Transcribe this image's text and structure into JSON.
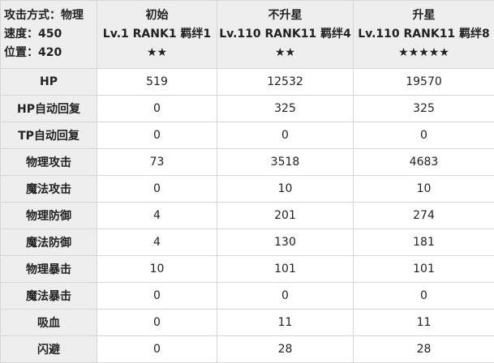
{
  "meta": {
    "attack_type": "攻击方式：物理",
    "speed": "速度：450",
    "position": "位置：420"
  },
  "columns": [
    {
      "title": "初始",
      "level": "Lv.1 RANK1 羁绊1",
      "stars": "★★"
    },
    {
      "title": "不升星",
      "level": "Lv.110 RANK11 羁绊4",
      "stars": "★★"
    },
    {
      "title": "升星",
      "level": "Lv.110 RANK11 羁绊8",
      "stars": "★★★★★"
    }
  ],
  "rows": [
    {
      "label": "HP",
      "values": [
        "519",
        "12532",
        "19570"
      ]
    },
    {
      "label": "HP自动回复",
      "values": [
        "0",
        "325",
        "325"
      ]
    },
    {
      "label": "TP自动回复",
      "values": [
        "0",
        "0",
        "0"
      ]
    },
    {
      "label": "物理攻击",
      "values": [
        "73",
        "3518",
        "4683"
      ]
    },
    {
      "label": "魔法攻击",
      "values": [
        "0",
        "10",
        "10"
      ]
    },
    {
      "label": "物理防御",
      "values": [
        "4",
        "201",
        "274"
      ]
    },
    {
      "label": "魔法防御",
      "values": [
        "4",
        "130",
        "181"
      ]
    },
    {
      "label": "物理暴击",
      "values": [
        "10",
        "101",
        "101"
      ]
    },
    {
      "label": "魔法暴击",
      "values": [
        "0",
        "0",
        "0"
      ]
    },
    {
      "label": "吸血",
      "values": [
        "0",
        "11",
        "11"
      ]
    },
    {
      "label": "闪避",
      "values": [
        "0",
        "28",
        "28"
      ]
    }
  ]
}
